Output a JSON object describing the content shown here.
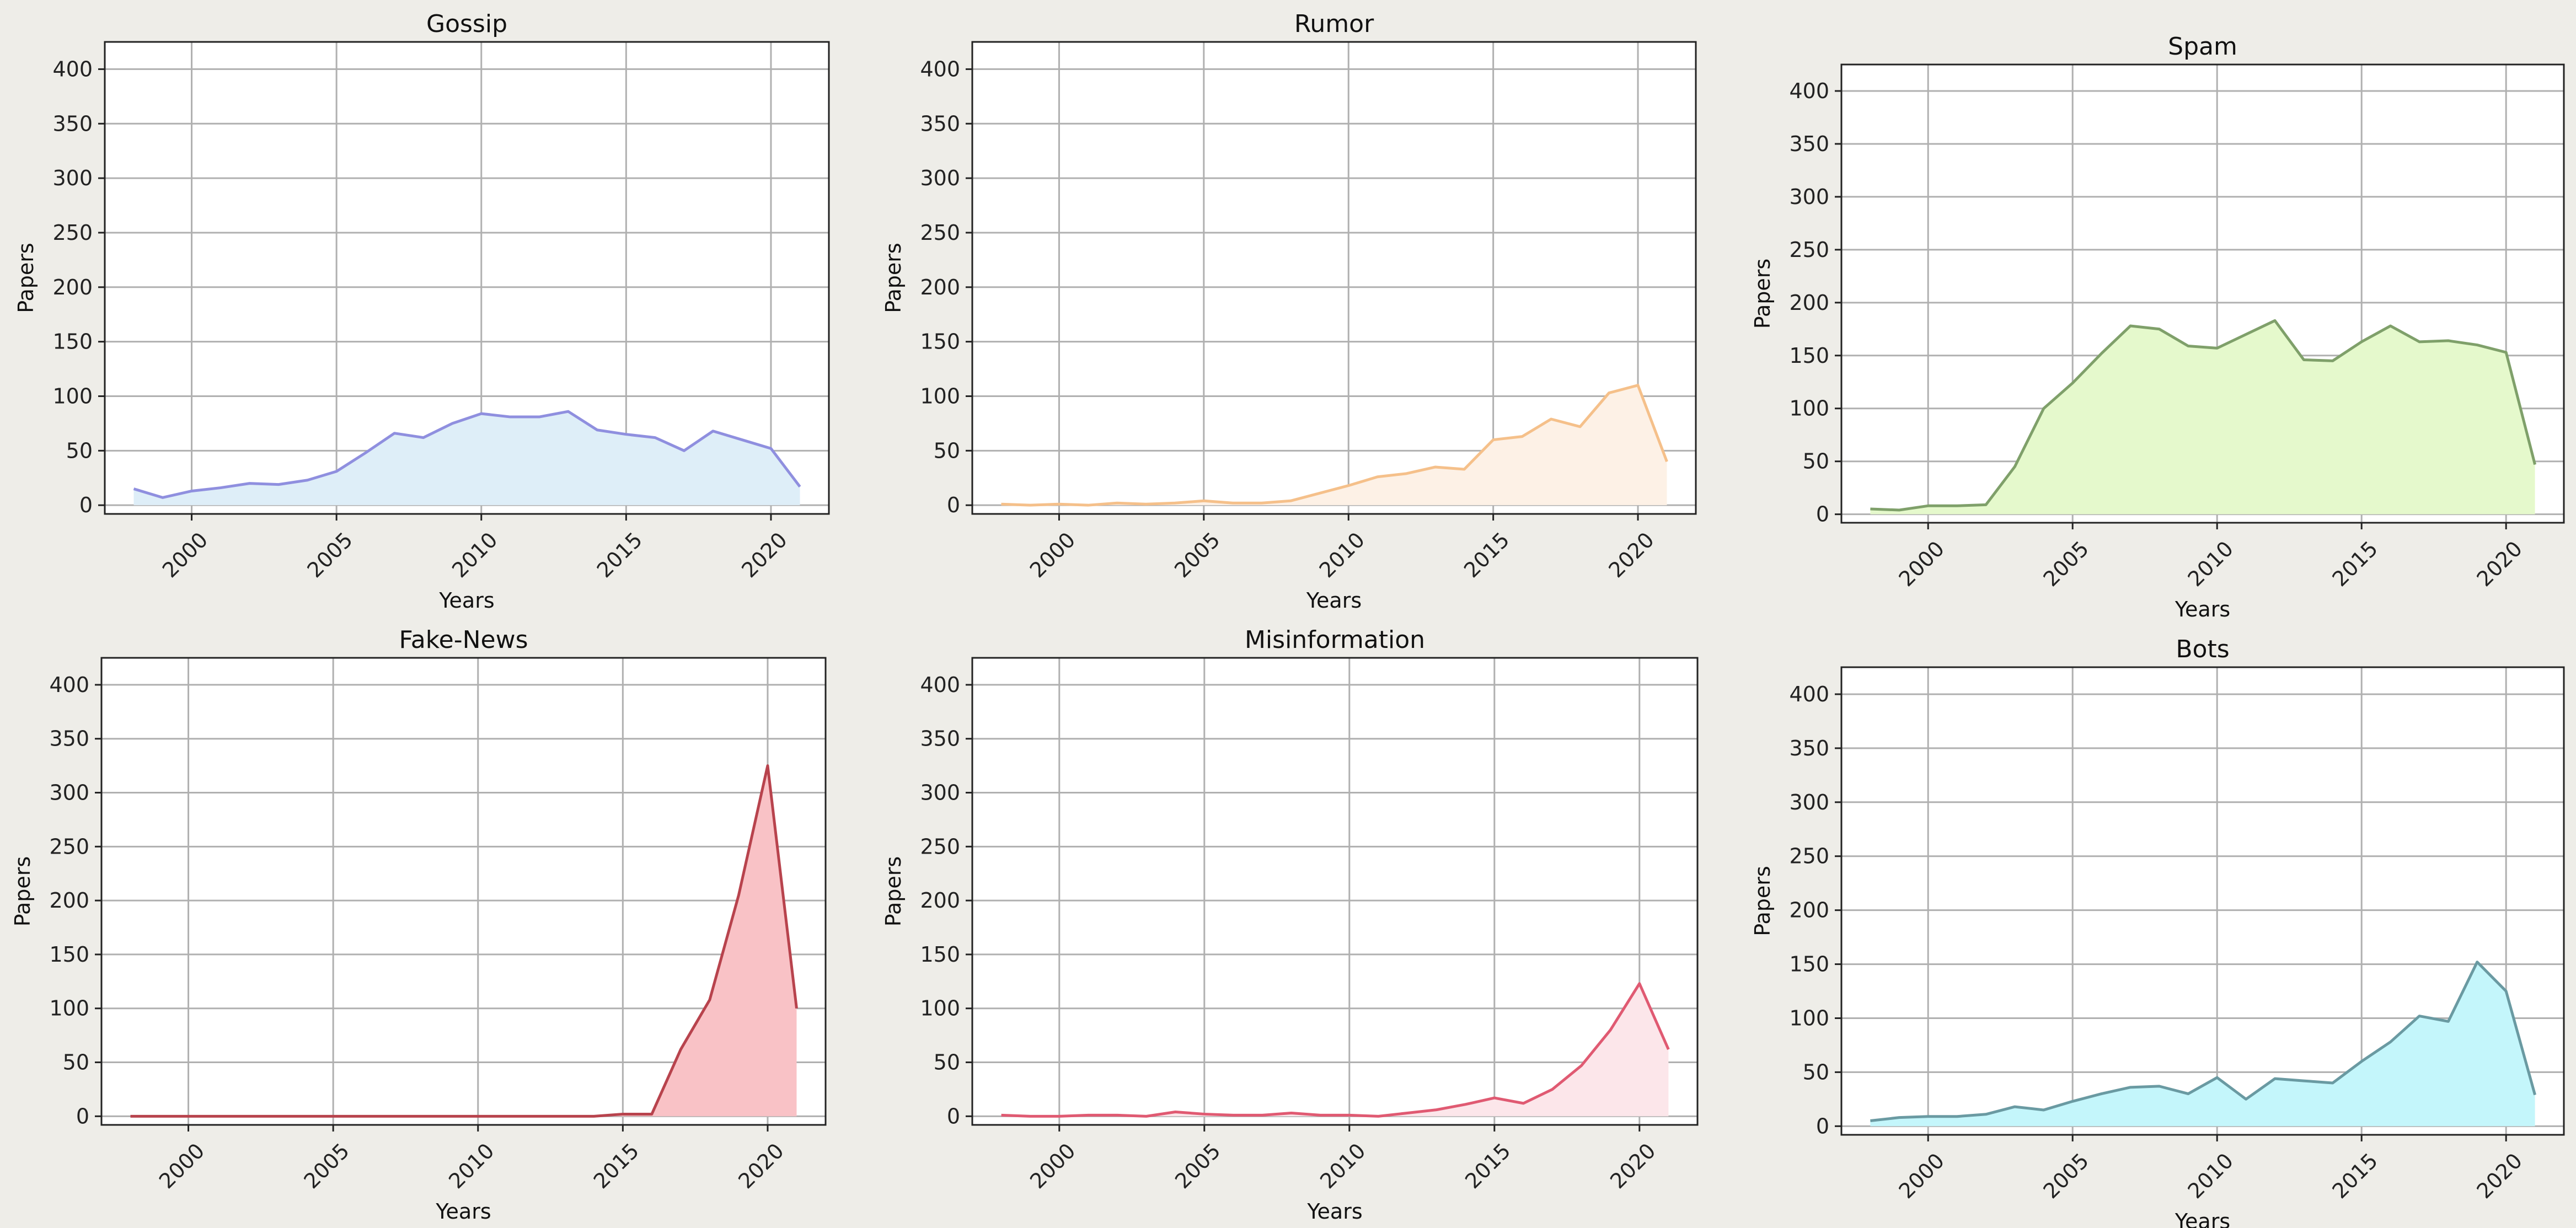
{
  "chart_data": [
    {
      "type": "area",
      "title": "Gossip",
      "xlabel": "Years",
      "ylabel": "Papers",
      "xlim": [
        1997,
        2022
      ],
      "ylim": [
        -8,
        425
      ],
      "x_ticks": [
        2000,
        2005,
        2010,
        2015,
        2020
      ],
      "y_ticks": [
        0,
        50,
        100,
        150,
        200,
        250,
        300,
        350,
        400
      ],
      "grid": true,
      "line_color": "#8f8fdf",
      "fill_color": "#deeef8",
      "x": [
        1998,
        1999,
        2000,
        2001,
        2002,
        2003,
        2004,
        2005,
        2006,
        2007,
        2008,
        2009,
        2010,
        2011,
        2012,
        2013,
        2014,
        2015,
        2016,
        2017,
        2018,
        2019,
        2020,
        2021
      ],
      "values": [
        15,
        7,
        13,
        16,
        20,
        19,
        23,
        31,
        48,
        66,
        62,
        75,
        84,
        81,
        81,
        86,
        69,
        65,
        62,
        50,
        68,
        60,
        52,
        17
      ]
    },
    {
      "type": "area",
      "title": "Rumor",
      "xlabel": "Years",
      "ylabel": "Papers",
      "xlim": [
        1997,
        2022
      ],
      "ylim": [
        -8,
        425
      ],
      "x_ticks": [
        2000,
        2005,
        2010,
        2015,
        2020
      ],
      "y_ticks": [
        0,
        50,
        100,
        150,
        200,
        250,
        300,
        350,
        400
      ],
      "grid": true,
      "line_color": "#f5c08a",
      "fill_color": "#fdf1e6",
      "x": [
        1998,
        1999,
        2000,
        2001,
        2002,
        2003,
        2004,
        2005,
        2006,
        2007,
        2008,
        2009,
        2010,
        2011,
        2012,
        2013,
        2014,
        2015,
        2016,
        2017,
        2018,
        2019,
        2020,
        2021
      ],
      "values": [
        1,
        0,
        1,
        0,
        2,
        1,
        2,
        4,
        2,
        2,
        4,
        11,
        18,
        26,
        29,
        35,
        33,
        60,
        63,
        79,
        72,
        103,
        110,
        40
      ]
    },
    {
      "type": "area",
      "title": "Spam",
      "xlabel": "Years",
      "ylabel": "Papers",
      "xlim": [
        1997,
        2022
      ],
      "ylim": [
        -8,
        425
      ],
      "x_ticks": [
        2000,
        2005,
        2010,
        2015,
        2020
      ],
      "y_ticks": [
        0,
        50,
        100,
        150,
        200,
        250,
        300,
        350,
        400
      ],
      "grid": true,
      "line_color": "#7fa06a",
      "fill_color": "#e5f9cc",
      "x": [
        1998,
        1999,
        2000,
        2001,
        2002,
        2003,
        2004,
        2005,
        2006,
        2007,
        2008,
        2009,
        2010,
        2011,
        2012,
        2013,
        2014,
        2015,
        2016,
        2017,
        2018,
        2019,
        2020,
        2021
      ],
      "values": [
        5,
        4,
        8,
        8,
        9,
        45,
        100,
        124,
        152,
        178,
        175,
        159,
        157,
        170,
        183,
        146,
        145,
        163,
        178,
        163,
        164,
        160,
        153,
        47
      ]
    },
    {
      "type": "area",
      "title": "Fake-News",
      "xlabel": "Years",
      "ylabel": "Papers",
      "xlim": [
        1997,
        2022
      ],
      "ylim": [
        -8,
        425
      ],
      "x_ticks": [
        2000,
        2005,
        2010,
        2015,
        2020
      ],
      "y_ticks": [
        0,
        50,
        100,
        150,
        200,
        250,
        300,
        350,
        400
      ],
      "grid": true,
      "line_color": "#b8434d",
      "fill_color": "#f9c2c6",
      "x": [
        1998,
        1999,
        2000,
        2001,
        2002,
        2003,
        2004,
        2005,
        2006,
        2007,
        2008,
        2009,
        2010,
        2011,
        2012,
        2013,
        2014,
        2015,
        2016,
        2017,
        2018,
        2019,
        2020,
        2021
      ],
      "values": [
        0,
        0,
        0,
        0,
        0,
        0,
        0,
        0,
        0,
        0,
        0,
        0,
        0,
        0,
        0,
        0,
        0,
        2,
        2,
        62,
        108,
        205,
        325,
        100
      ]
    },
    {
      "type": "area",
      "title": "Misinformation",
      "xlabel": "Years",
      "ylabel": "Papers",
      "xlim": [
        1997,
        2022
      ],
      "ylim": [
        -8,
        425
      ],
      "x_ticks": [
        2000,
        2005,
        2010,
        2015,
        2020
      ],
      "y_ticks": [
        0,
        50,
        100,
        150,
        200,
        250,
        300,
        350,
        400
      ],
      "grid": true,
      "line_color": "#e05a72",
      "fill_color": "#fce6ea",
      "x": [
        1998,
        1999,
        2000,
        2001,
        2002,
        2003,
        2004,
        2005,
        2006,
        2007,
        2008,
        2009,
        2010,
        2011,
        2012,
        2013,
        2014,
        2015,
        2016,
        2017,
        2018,
        2019,
        2020,
        2021
      ],
      "values": [
        1,
        0,
        0,
        1,
        1,
        0,
        4,
        2,
        1,
        1,
        3,
        1,
        1,
        0,
        3,
        6,
        11,
        17,
        12,
        25,
        47,
        80,
        123,
        62
      ]
    },
    {
      "type": "area",
      "title": "Bots",
      "xlabel": "Years",
      "ylabel": "Papers",
      "xlim": [
        1997,
        2022
      ],
      "ylim": [
        -8,
        425
      ],
      "x_ticks": [
        2000,
        2005,
        2010,
        2015,
        2020
      ],
      "y_ticks": [
        0,
        50,
        100,
        150,
        200,
        250,
        300,
        350,
        400
      ],
      "grid": true,
      "line_color": "#6a9aa2",
      "fill_color": "#c4f6fb",
      "x": [
        1998,
        1999,
        2000,
        2001,
        2002,
        2003,
        2004,
        2005,
        2006,
        2007,
        2008,
        2009,
        2010,
        2011,
        2012,
        2013,
        2014,
        2015,
        2016,
        2017,
        2018,
        2019,
        2020,
        2021
      ],
      "values": [
        5,
        8,
        9,
        9,
        11,
        18,
        15,
        23,
        30,
        36,
        37,
        30,
        45,
        25,
        44,
        42,
        40,
        60,
        78,
        102,
        97,
        152,
        125,
        29
      ]
    }
  ]
}
